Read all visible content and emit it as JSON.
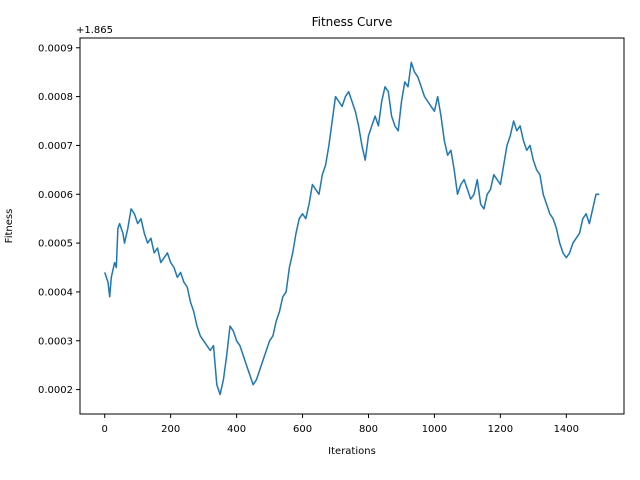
{
  "chart_data": {
    "type": "line",
    "title": "Fitness Curve",
    "xlabel": "Iterations",
    "ylabel": "Fitness",
    "offset_label": "+1.865",
    "offset": 1.865,
    "xlim": [
      -75,
      1575
    ],
    "ylim": [
      0.00015,
      0.00092
    ],
    "xticks": [
      0,
      200,
      400,
      600,
      800,
      1000,
      1200,
      1400
    ],
    "xtick_labels": [
      "0",
      "200",
      "400",
      "600",
      "800",
      "1000",
      "1200",
      "1400"
    ],
    "yticks": [
      0.0002,
      0.0003,
      0.0004,
      0.0005,
      0.0006,
      0.0007,
      0.0008,
      0.0009
    ],
    "ytick_labels": [
      "0.0002",
      "0.0003",
      "0.0004",
      "0.0005",
      "0.0006",
      "0.0007",
      "0.0008",
      "0.0009"
    ],
    "grid": false,
    "line_color": "#1f77b4",
    "series": [
      {
        "x": [
          0,
          10,
          15,
          20,
          30,
          35,
          40,
          45,
          55,
          60,
          70,
          80,
          90,
          100,
          110,
          120,
          130,
          140,
          150,
          160,
          170,
          180,
          190,
          200,
          210,
          220,
          230,
          240,
          250,
          260,
          270,
          280,
          290,
          300,
          310,
          320,
          330,
          340,
          345,
          350,
          360,
          370,
          380,
          390,
          400,
          410,
          420,
          430,
          440,
          450,
          460,
          470,
          480,
          490,
          500,
          510,
          520,
          530,
          540,
          550,
          560,
          570,
          580,
          590,
          600,
          610,
          620,
          630,
          640,
          650,
          660,
          670,
          680,
          690,
          700,
          710,
          720,
          730,
          740,
          750,
          760,
          770,
          780,
          790,
          800,
          810,
          820,
          830,
          840,
          850,
          860,
          870,
          880,
          890,
          900,
          910,
          920,
          930,
          940,
          950,
          960,
          970,
          980,
          990,
          1000,
          1010,
          1020,
          1030,
          1040,
          1050,
          1060,
          1070,
          1080,
          1090,
          1100,
          1110,
          1120,
          1130,
          1140,
          1150,
          1160,
          1170,
          1180,
          1190,
          1200,
          1210,
          1220,
          1230,
          1240,
          1250,
          1260,
          1270,
          1280,
          1290,
          1300,
          1310,
          1320,
          1330,
          1340,
          1350,
          1360,
          1370,
          1380,
          1390,
          1400,
          1410,
          1420,
          1430,
          1440,
          1450,
          1460,
          1470,
          1480,
          1490,
          1500
        ],
        "y": [
          0.00044,
          0.00042,
          0.00039,
          0.00043,
          0.00046,
          0.00045,
          0.00053,
          0.00054,
          0.00052,
          0.0005,
          0.00053,
          0.00057,
          0.00056,
          0.00054,
          0.00055,
          0.00052,
          0.0005,
          0.00051,
          0.00048,
          0.00049,
          0.00046,
          0.00047,
          0.00048,
          0.00046,
          0.00045,
          0.00043,
          0.00044,
          0.00042,
          0.00041,
          0.00038,
          0.00036,
          0.00033,
          0.00031,
          0.0003,
          0.00029,
          0.00028,
          0.00029,
          0.00021,
          0.0002,
          0.00019,
          0.00022,
          0.00027,
          0.00033,
          0.00032,
          0.0003,
          0.00029,
          0.00027,
          0.00025,
          0.00023,
          0.00021,
          0.00022,
          0.00024,
          0.00026,
          0.00028,
          0.0003,
          0.00031,
          0.00034,
          0.00036,
          0.00039,
          0.0004,
          0.00045,
          0.00048,
          0.00052,
          0.00055,
          0.00056,
          0.00055,
          0.00058,
          0.00062,
          0.00061,
          0.0006,
          0.00064,
          0.00066,
          0.0007,
          0.00075,
          0.0008,
          0.00079,
          0.00078,
          0.0008,
          0.00081,
          0.00079,
          0.00077,
          0.00074,
          0.0007,
          0.00067,
          0.00072,
          0.00074,
          0.00076,
          0.00074,
          0.00079,
          0.00082,
          0.00081,
          0.00076,
          0.00074,
          0.00073,
          0.00079,
          0.00083,
          0.00082,
          0.00087,
          0.00085,
          0.00084,
          0.00082,
          0.0008,
          0.00079,
          0.00078,
          0.00077,
          0.0008,
          0.00076,
          0.00071,
          0.00068,
          0.00069,
          0.00065,
          0.0006,
          0.00062,
          0.00063,
          0.00061,
          0.00059,
          0.0006,
          0.00063,
          0.00058,
          0.00057,
          0.0006,
          0.00061,
          0.00064,
          0.00063,
          0.00062,
          0.00066,
          0.0007,
          0.00072,
          0.00075,
          0.00073,
          0.00074,
          0.00071,
          0.00069,
          0.0007,
          0.00067,
          0.00065,
          0.00064,
          0.0006,
          0.00058,
          0.00056,
          0.00055,
          0.00053,
          0.0005,
          0.00048,
          0.00047,
          0.00048,
          0.0005,
          0.00051,
          0.00052,
          0.00055,
          0.00056,
          0.00054,
          0.00057,
          0.0006,
          0.0006
        ]
      }
    ]
  }
}
